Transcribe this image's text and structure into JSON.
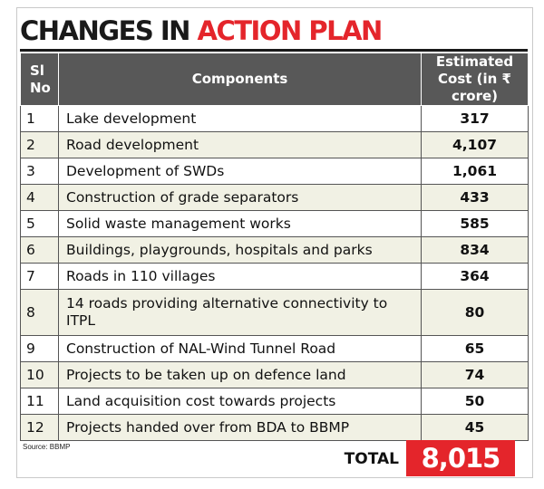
{
  "title": {
    "part1": "CHANGES IN",
    "part2": "ACTION PLAN"
  },
  "colors": {
    "accent": "#e4252b",
    "header_bg": "#585858",
    "row_alt": "#f1f1e4"
  },
  "table": {
    "headers": {
      "sl": "Sl No",
      "components": "Components",
      "cost": "Estimated Cost (in ₹ crore)"
    },
    "rows": [
      {
        "sl": "1",
        "component": "Lake development",
        "cost": "317"
      },
      {
        "sl": "2",
        "component": "Road development",
        "cost": "4,107"
      },
      {
        "sl": "3",
        "component": "Development of SWDs",
        "cost": "1,061"
      },
      {
        "sl": "4",
        "component": "Construction of grade separators",
        "cost": "433"
      },
      {
        "sl": "5",
        "component": "Solid waste management works",
        "cost": "585"
      },
      {
        "sl": "6",
        "component": "Buildings, playgrounds, hospitals and parks",
        "cost": "834"
      },
      {
        "sl": "7",
        "component": "Roads in 110 villages",
        "cost": "364"
      },
      {
        "sl": "8",
        "component": "14 roads providing alternative connectivity to ITPL",
        "cost": "80"
      },
      {
        "sl": "9",
        "component": "Construction of NAL-Wind Tunnel Road",
        "cost": "65"
      },
      {
        "sl": "10",
        "component": "Projects to be taken up on defence land",
        "cost": "74"
      },
      {
        "sl": "11",
        "component": "Land acquisition cost towards projects",
        "cost": "50"
      },
      {
        "sl": "12",
        "component": "Projects handed over from BDA to BBMP",
        "cost": "45"
      }
    ]
  },
  "source": "Source: BBMP",
  "total": {
    "label": "TOTAL",
    "value": "8,015"
  }
}
